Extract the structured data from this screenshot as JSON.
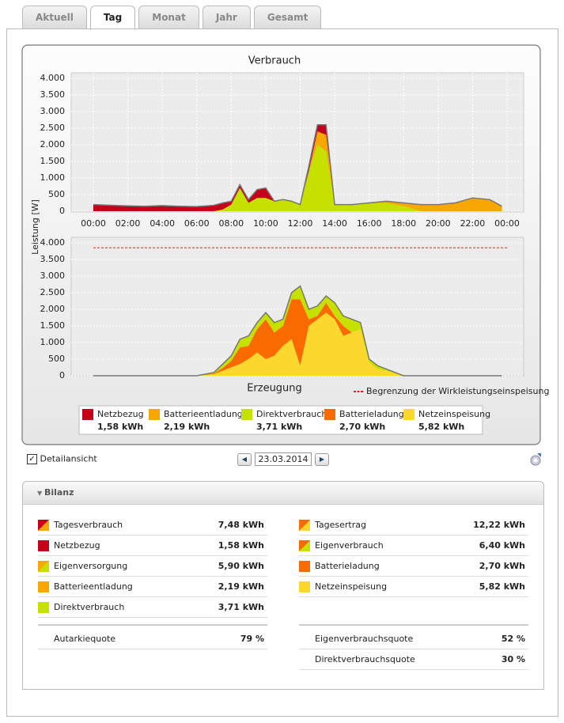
{
  "tabs": [
    "Aktuell",
    "Tag",
    "Monat",
    "Jahr",
    "Gesamt"
  ],
  "active_tab": 1,
  "chart_data": [
    {
      "type": "area",
      "title": "Verbrauch",
      "ylabel": "Leistung [W]",
      "x": [
        0,
        1,
        2,
        3,
        4,
        5,
        6,
        7,
        7.5,
        8,
        8.5,
        9,
        9.5,
        10,
        10.5,
        11,
        11.5,
        12,
        12.5,
        13,
        13.5,
        14,
        15,
        16,
        17,
        18,
        19,
        20,
        21,
        22,
        23,
        23.7
      ],
      "series": [
        {
          "name": "Direktverbrauch",
          "color": "#c6e000",
          "values": [
            0,
            0,
            0,
            0,
            0,
            0,
            0,
            0,
            50,
            200,
            700,
            250,
            400,
            400,
            300,
            350,
            300,
            200,
            1200,
            2000,
            1800,
            200,
            200,
            250,
            250,
            150,
            0,
            0,
            0,
            0,
            0,
            0
          ]
        },
        {
          "name": "Batterieentladung",
          "color": "#f7a800",
          "values": [
            0,
            0,
            0,
            0,
            0,
            0,
            0,
            0,
            0,
            0,
            0,
            0,
            0,
            0,
            0,
            0,
            0,
            0,
            0,
            400,
            500,
            0,
            0,
            0,
            50,
            100,
            200,
            200,
            250,
            400,
            350,
            150
          ]
        },
        {
          "name": "Netzbezug",
          "color": "#c4001a",
          "values": [
            200,
            180,
            160,
            150,
            170,
            150,
            140,
            180,
            200,
            100,
            100,
            100,
            250,
            300,
            0,
            0,
            0,
            0,
            150,
            200,
            300,
            0,
            0,
            0,
            0,
            0,
            0,
            0,
            0,
            0,
            0,
            0
          ]
        }
      ],
      "xlim": [
        0,
        24
      ],
      "ylim": [
        0,
        4000
      ],
      "xticks": [
        {
          "value": 0,
          "label": "00:00"
        },
        {
          "value": 2,
          "label": "02:00"
        },
        {
          "value": 4,
          "label": "04:00"
        },
        {
          "value": 6,
          "label": "06:00"
        },
        {
          "value": 8,
          "label": "08:00"
        },
        {
          "value": 10,
          "label": "10:00"
        },
        {
          "value": 12,
          "label": "12:00"
        },
        {
          "value": 14,
          "label": "14:00"
        },
        {
          "value": 16,
          "label": "16:00"
        },
        {
          "value": 18,
          "label": "18:00"
        },
        {
          "value": 20,
          "label": "20:00"
        },
        {
          "value": 22,
          "label": "22:00"
        },
        {
          "value": 24,
          "label": "00:00"
        }
      ],
      "yticks": [
        0,
        {
          "value": 500,
          "label": "500"
        },
        {
          "value": 1000,
          "label": "1.000"
        },
        {
          "value": 1500,
          "label": "1.500"
        },
        {
          "value": 2000,
          "label": "2.000"
        },
        {
          "value": 2500,
          "label": "2.500"
        },
        {
          "value": 3000,
          "label": "3.000"
        },
        {
          "value": 3500,
          "label": "3.500"
        },
        {
          "value": 4000,
          "label": "4.000"
        }
      ],
      "grid": true
    },
    {
      "type": "area",
      "title": "Erzeugung",
      "x": [
        0,
        6,
        7,
        7.5,
        8,
        8.5,
        9,
        9.5,
        10,
        10.5,
        11,
        11.5,
        12,
        12.5,
        13,
        13.5,
        14,
        14.5,
        15,
        15.5,
        16,
        16.5,
        17,
        18,
        23.7
      ],
      "series": [
        {
          "name": "Netzeinspeisung",
          "color": "#fcd82e",
          "values": [
            0,
            0,
            50,
            150,
            250,
            350,
            500,
            700,
            500,
            600,
            900,
            1100,
            300,
            1500,
            1700,
            1900,
            1700,
            1200,
            1300,
            1400,
            400,
            200,
            150,
            0,
            0
          ]
        },
        {
          "name": "Batterieladung",
          "color": "#f96a00",
          "values": [
            0,
            0,
            20,
            80,
            200,
            500,
            400,
            700,
            1200,
            700,
            600,
            1200,
            2000,
            200,
            100,
            300,
            100,
            300,
            0,
            0,
            0,
            0,
            0,
            0,
            0
          ]
        },
        {
          "name": "Direktverbrauch",
          "color": "#c6e000",
          "values": [
            0,
            0,
            30,
            120,
            150,
            250,
            300,
            200,
            200,
            300,
            200,
            200,
            400,
            300,
            300,
            200,
            400,
            300,
            400,
            200,
            100,
            100,
            50,
            0,
            0
          ]
        }
      ],
      "xlim": [
        0,
        24
      ],
      "ylim": [
        0,
        4000
      ],
      "yticks": [
        0,
        {
          "value": 500,
          "label": "500"
        },
        {
          "value": 1000,
          "label": "1.000"
        },
        {
          "value": 1500,
          "label": "1.500"
        },
        {
          "value": 2000,
          "label": "2.000"
        },
        {
          "value": 2500,
          "label": "2.500"
        },
        {
          "value": 3000,
          "label": "3.000"
        },
        {
          "value": 3500,
          "label": "3.500"
        },
        {
          "value": 4000,
          "label": "4.000"
        }
      ],
      "grid": true,
      "limit": {
        "value": 3850,
        "label": "Begrenzung der Wirkleistungseinspeisung",
        "color": "#e02020"
      }
    }
  ],
  "legend": [
    {
      "name": "Netzbezug",
      "color": "#c4001a",
      "energy": "1,58 kWh"
    },
    {
      "name": "Batterieentladung",
      "color": "#f7a800",
      "energy": "2,19 kWh"
    },
    {
      "name": "Direktverbrauch",
      "color": "#c6e000",
      "energy": "3,71 kWh"
    },
    {
      "name": "Batterieladung",
      "color": "#f96a00",
      "energy": "2,70 kWh"
    },
    {
      "name": "Netzeinspeisung",
      "color": "#fcd82e",
      "energy": "5,82 kWh"
    }
  ],
  "controls": {
    "detail": "Detailansicht",
    "date": "23.03.2014"
  },
  "bilanz": {
    "title": "Bilanz",
    "left": [
      {
        "label": "Tagesverbrauch",
        "value": "7,48 kWh",
        "colors": [
          "#c4001a",
          "#f7a800"
        ]
      },
      {
        "label": "Netzbezug",
        "value": "1,58 kWh",
        "colors": [
          "#c4001a",
          "#c4001a"
        ]
      },
      {
        "label": "Eigenversorgung",
        "value": "5,90 kWh",
        "colors": [
          "#f7a800",
          "#c6e000"
        ]
      },
      {
        "label": "Batterieentladung",
        "value": "2,19 kWh",
        "colors": [
          "#f7a800",
          "#f7a800"
        ]
      },
      {
        "label": "Direktverbrauch",
        "value": "3,71 kWh",
        "colors": [
          "#c6e000",
          "#c6e000"
        ]
      }
    ],
    "left_quotes": [
      {
        "label": "Autarkiequote",
        "value": "79 %"
      }
    ],
    "right": [
      {
        "label": "Tagesertrag",
        "value": "12,22 kWh",
        "colors": [
          "#f96a00",
          "#fcd82e"
        ]
      },
      {
        "label": "Eigenverbrauch",
        "value": "6,40 kWh",
        "colors": [
          "#f96a00",
          "#c6e000"
        ]
      },
      {
        "label": "Batterieladung",
        "value": "2,70 kWh",
        "colors": [
          "#f96a00",
          "#f96a00"
        ]
      },
      {
        "label": "Netzeinspeisung",
        "value": "5,82 kWh",
        "colors": [
          "#fcd82e",
          "#fcd82e"
        ]
      }
    ],
    "right_quotes": [
      {
        "label": "Eigenverbrauchsquote",
        "value": "52 %"
      },
      {
        "label": "Direktverbrauchsquote",
        "value": "30 %"
      }
    ]
  }
}
